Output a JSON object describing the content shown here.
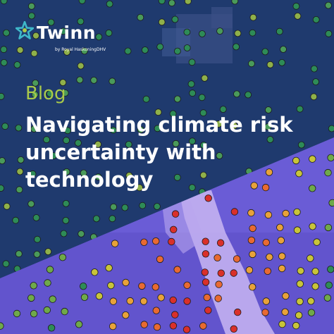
{
  "brand": {
    "name": "Twinn",
    "tagline": "by Royal HaskoningDHV",
    "star_colors": [
      "#3fb8c9",
      "#a9c94a"
    ]
  },
  "post": {
    "kicker": "Blog",
    "title_lines": [
      "Navigating climate risk",
      "uncertainty with",
      "technology"
    ]
  },
  "colors": {
    "overlay_dark": "#1f3a6e",
    "overlay_purple": "#6a5cd6",
    "accent_green": "#a9c94a",
    "text": "#ffffff"
  },
  "risk_colors": [
    "#2e8b57",
    "#6fa94a",
    "#c8c43a",
    "#e8a23a",
    "#e86a32",
    "#d9302a"
  ]
}
